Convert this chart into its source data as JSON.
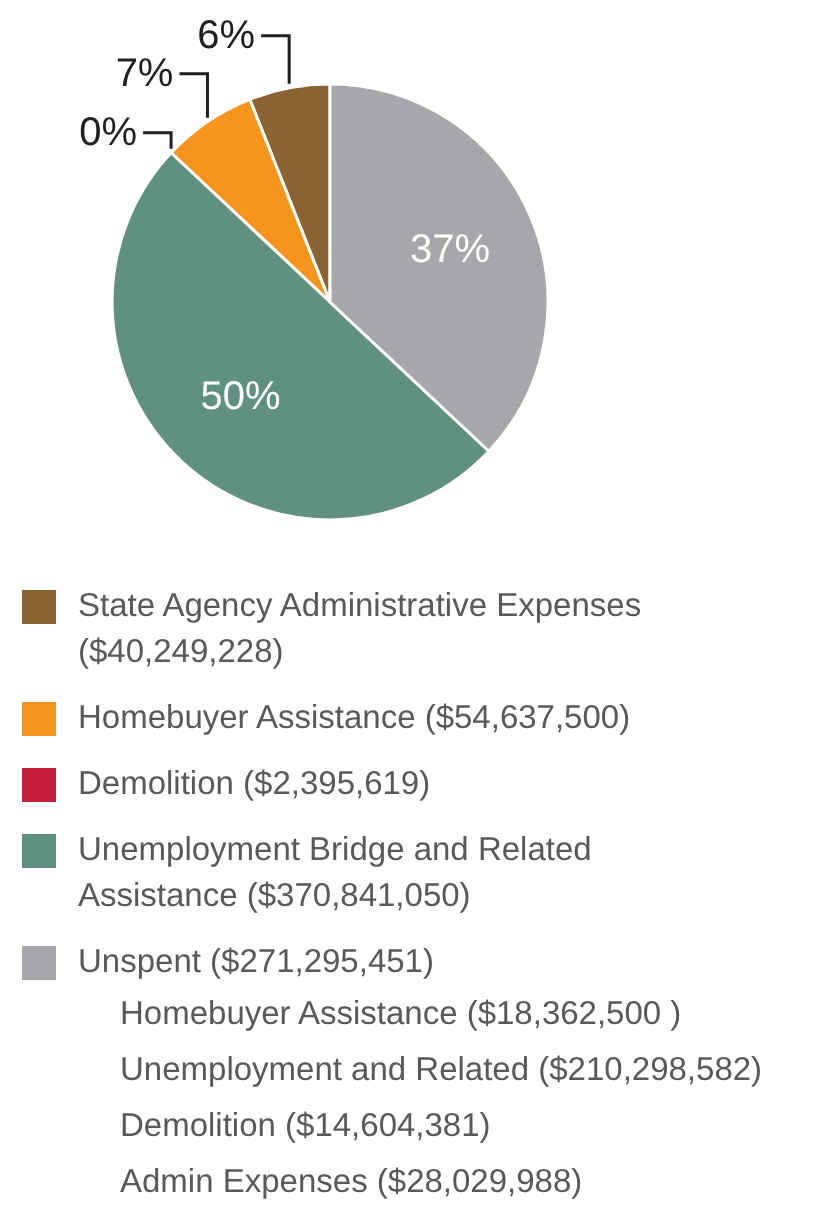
{
  "chart_data": {
    "type": "pie",
    "categories": [
      "State Agency Administrative Expenses ($40,249,228)",
      "Homebuyer Assistance ($54,637,500)",
      "Demolition ($2,395,619)",
      "Unemployment Bridge and Related Assistance ($370,841,050)",
      "Unspent ($271,295,451)"
    ],
    "values": [
      6,
      7,
      0,
      50,
      37
    ],
    "colors": [
      "#8a6331",
      "#f7941d",
      "#c41e3a",
      "#5f917e",
      "#a6a7aa"
    ],
    "value_labels": [
      "6%",
      "7%",
      "0%",
      "50%",
      "37%"
    ],
    "legend": "bottom",
    "annotations": [
      "Homebuyer Assistance ($18,362,500 )",
      "Unemployment and Related ($210,298,582)",
      "Demolition ($14,604,381)",
      "Admin Expenses ($28,029,988)"
    ]
  }
}
